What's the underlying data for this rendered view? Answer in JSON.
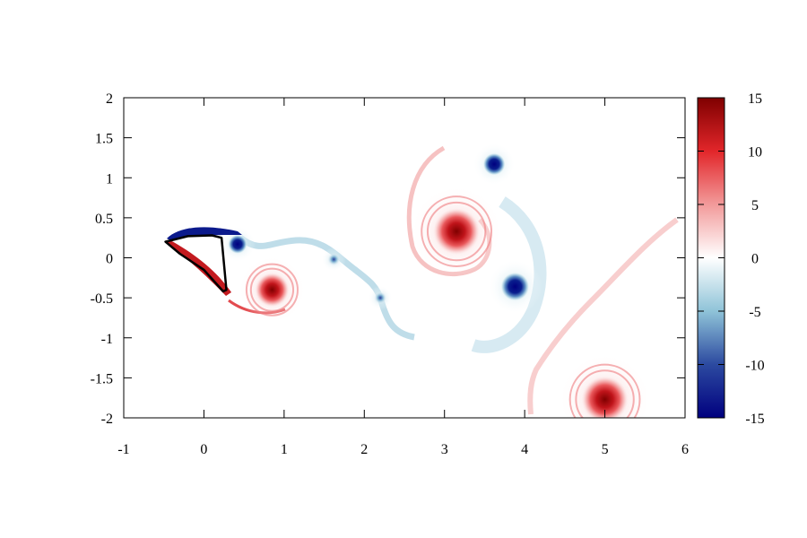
{
  "chart_data": {
    "type": "heatmap",
    "title": "",
    "xlabel": "",
    "ylabel": "",
    "xlim": [
      -1,
      6
    ],
    "ylim": [
      -2,
      2
    ],
    "x_ticks": [
      "-1",
      "0",
      "1",
      "2",
      "3",
      "4",
      "5",
      "6"
    ],
    "y_ticks": [
      "2",
      "1.5",
      "1",
      "0.5",
      "0",
      "-0.5",
      "-1",
      "-1.5",
      "-2"
    ],
    "colorbar": {
      "range": [
        -15,
        15
      ],
      "ticks": [
        "15",
        "10",
        "5",
        "0",
        "-5",
        "-10",
        "-15"
      ],
      "colormap": [
        "#00007f",
        "#2c4aa0",
        "#8fc3d8",
        "#ffffff",
        "#f29a9a",
        "#e2262a",
        "#7f0000"
      ]
    },
    "vortices": [
      {
        "x": 0.42,
        "y": 0.17,
        "value": -15,
        "radius": 0.12
      },
      {
        "x": 0.85,
        "y": -0.4,
        "value": 15,
        "radius": 0.22
      },
      {
        "x": 1.62,
        "y": -0.02,
        "value": -10,
        "radius": 0.08
      },
      {
        "x": 2.2,
        "y": -0.5,
        "value": -10,
        "radius": 0.08
      },
      {
        "x": 3.15,
        "y": 0.33,
        "value": 15,
        "radius": 0.3
      },
      {
        "x": 3.62,
        "y": 1.17,
        "value": -15,
        "radius": 0.14
      },
      {
        "x": 3.88,
        "y": -0.36,
        "value": -15,
        "radius": 0.18
      },
      {
        "x": 5.0,
        "y": -1.77,
        "value": 15,
        "radius": 0.3
      }
    ],
    "body_outline": [
      [
        -0.48,
        0.2
      ],
      [
        -0.2,
        0.27
      ],
      [
        0.1,
        0.28
      ],
      [
        0.22,
        0.25
      ],
      [
        0.28,
        -0.4
      ],
      [
        0.24,
        -0.42
      ],
      [
        0.0,
        -0.15
      ],
      [
        -0.3,
        0.05
      ],
      [
        -0.48,
        0.2
      ]
    ]
  }
}
